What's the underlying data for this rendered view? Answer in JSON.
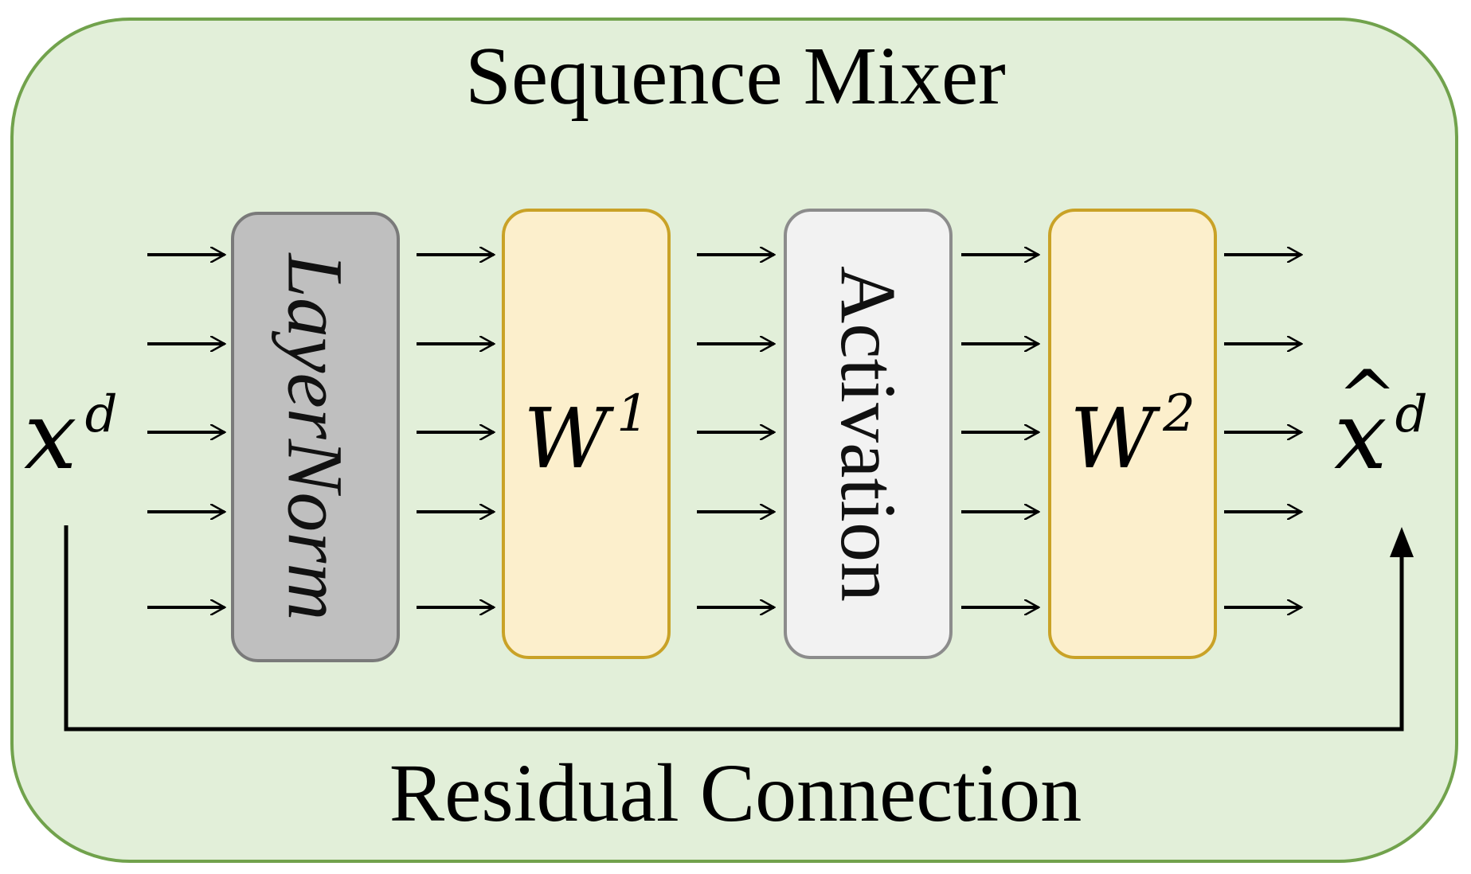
{
  "diagram": {
    "title": "Sequence Mixer",
    "caption": "Residual Connection",
    "input": {
      "symbol": "x",
      "superscript": "d"
    },
    "output": {
      "symbol": "x",
      "hat": "^",
      "superscript": "d"
    },
    "blocks": [
      {
        "id": "layernorm",
        "label": "LayerNorm",
        "fill": "#bfbfbf",
        "border": "#7a7a7a"
      },
      {
        "id": "w1",
        "symbol": "W",
        "superscript": "1",
        "fill": "#fcefcc",
        "border": "#c9a227"
      },
      {
        "id": "activation",
        "label": "Activation",
        "fill": "#f2f2f2",
        "border": "#8c8c8c"
      },
      {
        "id": "w2",
        "symbol": "W",
        "superscript": "2",
        "fill": "#fcefcc",
        "border": "#c9a227"
      }
    ],
    "colors": {
      "background": "#e2efd9",
      "frame_border": "#71a24c",
      "arrow": "#000000"
    }
  }
}
